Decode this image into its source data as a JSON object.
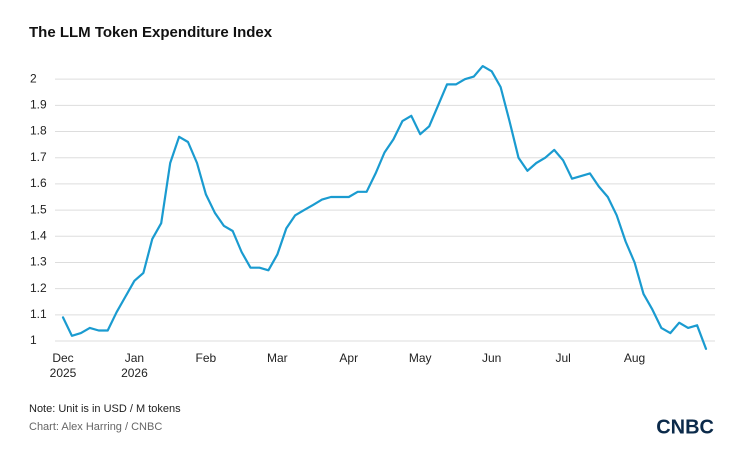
{
  "chart_data": {
    "type": "line",
    "title": "The LLM Token Expenditure Index",
    "note": "Note: Unit is in USD / M tokens",
    "credit": "Chart: Alex Harring / CNBC",
    "logo": "CNBC",
    "categories": [
      "Dec\n2025",
      null,
      null,
      null,
      null,
      null,
      null,
      null,
      "Jan\n2026",
      null,
      null,
      null,
      null,
      null,
      null,
      null,
      "Feb",
      null,
      null,
      null,
      null,
      null,
      null,
      null,
      "Mar",
      null,
      null,
      null,
      null,
      null,
      null,
      null,
      "Apr",
      null,
      null,
      null,
      null,
      null,
      null,
      null,
      "May",
      null,
      null,
      null,
      null,
      null,
      null,
      null,
      "Jun",
      null,
      null,
      null,
      null,
      null,
      null,
      null,
      "Jul",
      null,
      null,
      null,
      null,
      null,
      null,
      null,
      "Aug",
      null,
      null,
      null,
      null,
      null,
      null,
      null,
      null
    ],
    "series": [
      {
        "name": "LLM Token Expenditure Index",
        "color": "#1a9bd0",
        "values": [
          1.09,
          1.02,
          1.03,
          1.05,
          1.04,
          1.04,
          1.11,
          1.17,
          1.23,
          1.26,
          1.39,
          1.45,
          1.68,
          1.78,
          1.76,
          1.68,
          1.56,
          1.49,
          1.44,
          1.42,
          1.34,
          1.28,
          1.28,
          1.27,
          1.33,
          1.43,
          1.48,
          1.5,
          1.52,
          1.54,
          1.55,
          1.55,
          1.55,
          1.57,
          1.57,
          1.64,
          1.72,
          1.77,
          1.84,
          1.86,
          1.79,
          1.82,
          1.9,
          1.98,
          1.98,
          2.0,
          2.01,
          2.05,
          2.03,
          1.97,
          1.84,
          1.7,
          1.65,
          1.68,
          1.7,
          1.73,
          1.69,
          1.62,
          1.63,
          1.64,
          1.59,
          1.55,
          1.48,
          1.38,
          1.3,
          1.18,
          1.12,
          1.05,
          1.03,
          1.07,
          1.05,
          1.06,
          0.97
        ]
      }
    ],
    "ylim": [
      1.0,
      2.1
    ],
    "yticks": [
      1.0,
      1.1,
      1.2,
      1.3,
      1.4,
      1.5,
      1.6,
      1.7,
      1.8,
      1.9,
      2.0
    ],
    "grid": true
  }
}
